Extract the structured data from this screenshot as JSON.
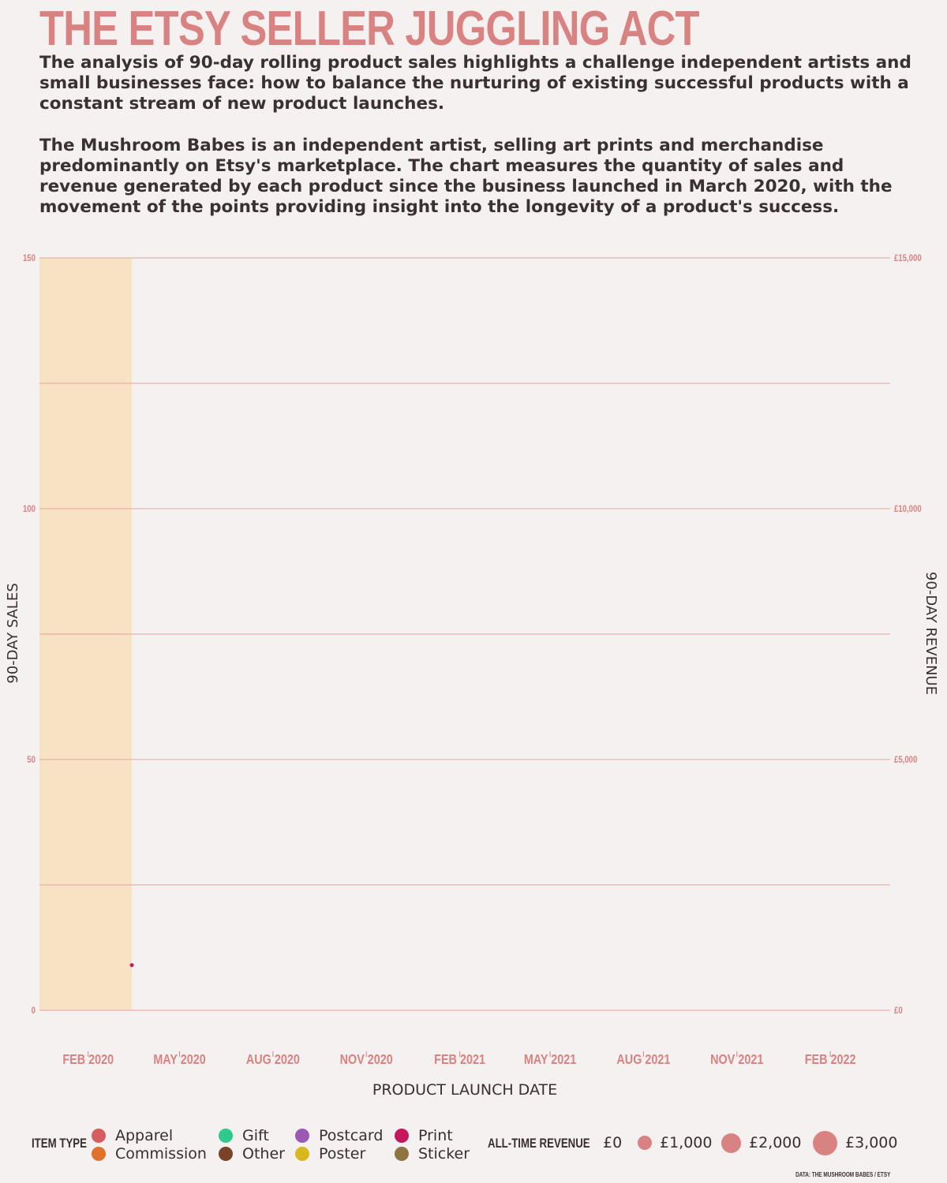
{
  "title": "THE ETSY SELLER JUGGLING ACT",
  "intro": {
    "p1": "The analysis of 90-day rolling product sales highlights a challenge independent artists and small businesses face: how to balance the nurturing of existing successful products with a constant stream of new product launches.",
    "p2": "The Mushroom Babes is an independent artist, selling art prints and merchandise predominantly on Etsy's marketplace. The chart measures the quantity of sales and revenue generated by each product since the business launched in March 2020, with the movement of the points providing insight into the longevity of a product's success."
  },
  "colors": {
    "accent": "#d98282",
    "text": "#3a2f2f",
    "band": "#f8e2c4",
    "background": "#f5f1f0"
  },
  "chart_data": {
    "type": "scatter",
    "xlabel": "PRODUCT LAUNCH DATE",
    "ylabel": "90-DAY SALES",
    "y2label": "90-DAY REVENUE",
    "x_ticks": [
      "FEB 2020",
      "MAY 2020",
      "AUG 2020",
      "NOV 2020",
      "FEB 2021",
      "MAY 2021",
      "AUG 2021",
      "NOV 2021",
      "FEB 2022"
    ],
    "xlim": [
      "2019-12-15",
      "2022-04-01"
    ],
    "ylim": [
      0,
      150
    ],
    "y_ticks": [
      "0",
      "50",
      "100",
      "150"
    ],
    "y_gridlines": [
      0,
      25,
      50,
      75,
      100,
      125,
      150
    ],
    "y2lim": [
      0,
      15000
    ],
    "y2_ticks": [
      "£0",
      "£5,000",
      "£10,000",
      "£15,000"
    ],
    "highlight_band": {
      "x_start": "2019-12-15",
      "x_end": "2020-03-15"
    },
    "points": [
      {
        "date": "2020-03-15",
        "sales": 9,
        "item_type": "Print",
        "revenue": 0
      }
    ],
    "grid": true
  },
  "legend": {
    "item_type_title": "ITEM TYPE",
    "item_types": [
      {
        "label": "Apparel",
        "color": "#d65e5e"
      },
      {
        "label": "Commission",
        "color": "#e0722a"
      },
      {
        "label": "Gift",
        "color": "#2ec98f"
      },
      {
        "label": "Other",
        "color": "#7a4226"
      },
      {
        "label": "Postcard",
        "color": "#9b59b6"
      },
      {
        "label": "Poster",
        "color": "#d8b81c"
      },
      {
        "label": "Print",
        "color": "#c2185b"
      },
      {
        "label": "Sticker",
        "color": "#8e7441"
      }
    ],
    "revenue_title": "ALL-TIME REVENUE",
    "revenue_sizes": [
      "£0",
      "£1,000",
      "£2,000",
      "£3,000"
    ]
  },
  "source": "DATA: THE MUSHROOM BABES / ETSY"
}
